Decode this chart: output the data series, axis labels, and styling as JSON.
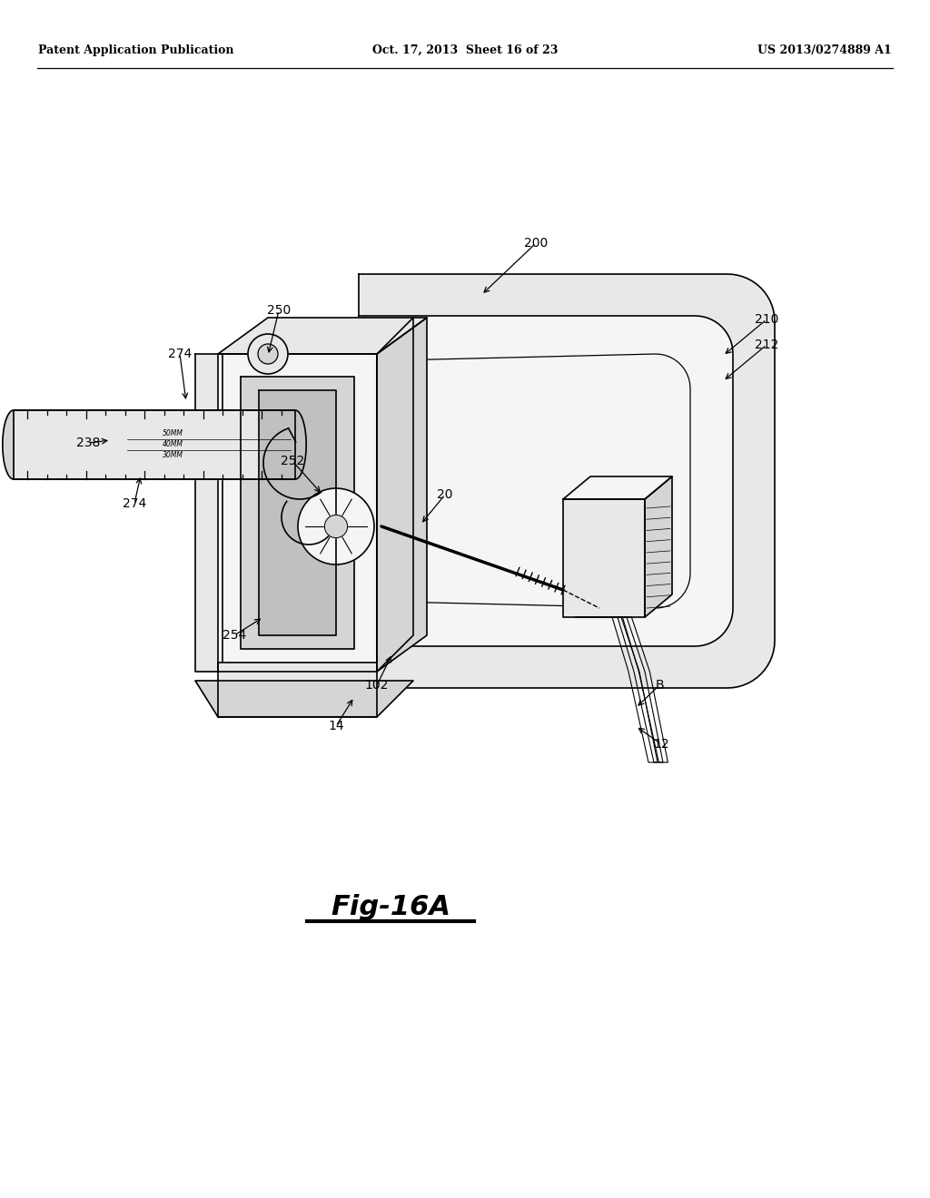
{
  "background_color": "#ffffff",
  "header_left": "Patent Application Publication",
  "header_center": "Oct. 17, 2013  Sheet 16 of 23",
  "header_right": "US 2013/0274889 A1",
  "figure_label": "Fig-16A",
  "line_color": "#000000",
  "fill_light": "#f5f5f5",
  "fill_mid": "#e8e8e8",
  "fill_dark": "#d5d5d5",
  "fill_darker": "#c0c0c0",
  "shade_color": "#bbbbbb"
}
